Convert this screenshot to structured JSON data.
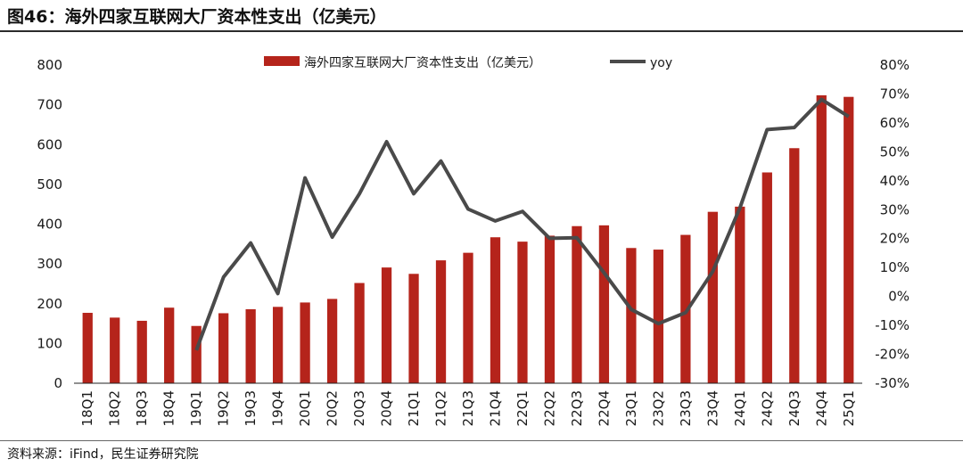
{
  "title": "图46：海外四家互联网大厂资本性支出（亿美元）",
  "source": "资料来源：iFind，民生证券研究院",
  "colors": {
    "bar": "#b5241b",
    "line": "#4a4a4a"
  },
  "chart_data": {
    "type": "bar",
    "categories": [
      "18Q1",
      "18Q2",
      "18Q3",
      "18Q4",
      "19Q1",
      "19Q2",
      "19Q3",
      "19Q4",
      "20Q1",
      "20Q2",
      "20Q3",
      "20Q4",
      "21Q1",
      "21Q2",
      "21Q3",
      "21Q4",
      "22Q1",
      "22Q2",
      "22Q3",
      "22Q4",
      "23Q1",
      "23Q2",
      "23Q3",
      "23Q4",
      "24Q1",
      "24Q2",
      "24Q3",
      "24Q4",
      "25Q1"
    ],
    "series": [
      {
        "name": "海外四家互联网大厂资本性支出（亿美元）",
        "type": "bar",
        "axis": "left",
        "values": [
          177,
          165,
          157,
          190,
          144,
          176,
          186,
          192,
          203,
          212,
          252,
          291,
          275,
          309,
          328,
          367,
          356,
          371,
          395,
          397,
          340,
          336,
          373,
          431,
          444,
          530,
          591,
          724,
          720
        ]
      },
      {
        "name": "yoy",
        "type": "line",
        "axis": "right",
        "values": [
          null,
          null,
          null,
          null,
          -18.6,
          6.7,
          18.5,
          1.0,
          41.0,
          20.5,
          35.5,
          53.5,
          35.5,
          46.8,
          30.2,
          26.1,
          29.4,
          20.1,
          20.3,
          8.2,
          -4.5,
          -9.4,
          -5.6,
          8.6,
          30.6,
          57.7,
          58.4,
          68.1,
          62.2
        ]
      }
    ],
    "y_left": {
      "min": 0,
      "max": 800,
      "ticks": [
        "0",
        "100",
        "200",
        "300",
        "400",
        "500",
        "600",
        "700",
        "800"
      ]
    },
    "y_right": {
      "min": -30,
      "max": 80,
      "ticks": [
        "-30%",
        "-20%",
        "-10%",
        "0%",
        "10%",
        "20%",
        "30%",
        "40%",
        "50%",
        "60%",
        "70%",
        "80%"
      ]
    },
    "legend": {
      "position": "top-center",
      "items": [
        "海外四家互联网大厂资本性支出（亿美元）",
        "yoy"
      ]
    },
    "grid": false
  }
}
